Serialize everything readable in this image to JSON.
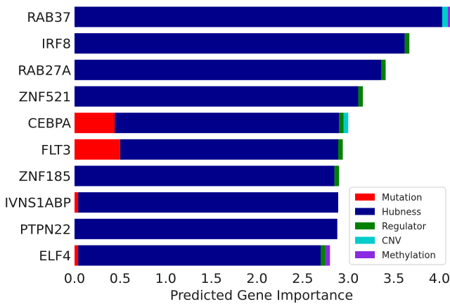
{
  "chart_data": {
    "type": "bar",
    "orientation": "horizontal",
    "stacked": true,
    "categories": [
      "RAB37",
      "IRF8",
      "RAB27A",
      "ZNF521",
      "CEBPA",
      "FLT3",
      "ZNF185",
      "IVNS1ABP",
      "PTPN22",
      "ELF4"
    ],
    "series": [
      {
        "name": "Mutation",
        "color": "#ff0000",
        "values": [
          0.0,
          0.0,
          0.0,
          0.0,
          0.44,
          0.5,
          0.0,
          0.04,
          0.0,
          0.04
        ]
      },
      {
        "name": "Hubness",
        "color": "#00008b",
        "values": [
          4.03,
          3.62,
          3.36,
          3.11,
          2.46,
          2.39,
          2.85,
          2.85,
          2.88,
          2.66
        ]
      },
      {
        "name": "Regulator",
        "color": "#007f00",
        "values": [
          0.0,
          0.05,
          0.05,
          0.05,
          0.05,
          0.05,
          0.05,
          0.0,
          0.0,
          0.05
        ]
      },
      {
        "name": "CNV",
        "color": "#00cccc",
        "values": [
          0.06,
          0.0,
          0.0,
          0.0,
          0.05,
          0.0,
          0.0,
          0.0,
          0.0,
          0.0
        ]
      },
      {
        "name": "Methylation",
        "color": "#8a2be2",
        "values": [
          0.03,
          0.0,
          0.0,
          0.0,
          0.0,
          0.0,
          0.0,
          0.0,
          0.0,
          0.05
        ]
      }
    ],
    "xlabel": "Predicted Gene Importance",
    "ylabel": "",
    "xlim": [
      0.0,
      4.1
    ],
    "xticks": [
      "0.0",
      "0.5",
      "1.0",
      "1.5",
      "2.0",
      "2.5",
      "3.0",
      "3.5",
      "4.0"
    ],
    "legend_position": "bottom-right",
    "grid": false
  }
}
